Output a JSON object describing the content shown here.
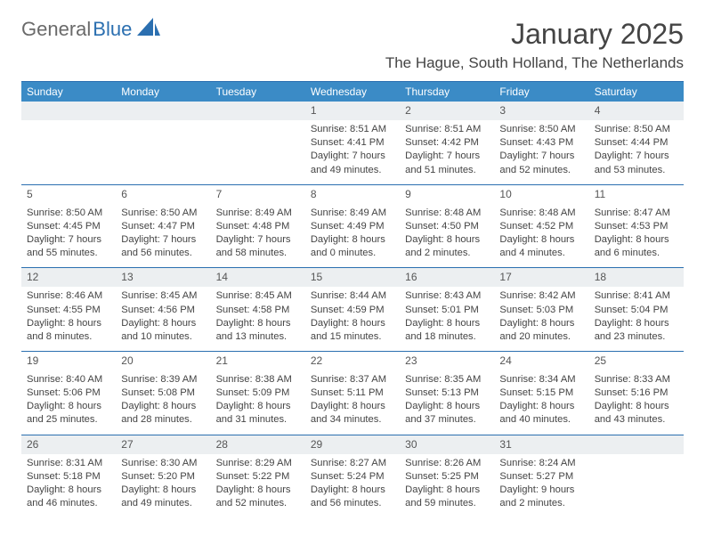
{
  "logo": {
    "text1": "General",
    "text2": "Blue"
  },
  "title": "January 2025",
  "subtitle": "The Hague, South Holland, The Netherlands",
  "colors": {
    "header_bg": "#3b8bc6",
    "header_text": "#ffffff",
    "rule": "#2b6fb0",
    "daybar_odd": "#eceff1",
    "text": "#444444"
  },
  "day_headers": [
    "Sunday",
    "Monday",
    "Tuesday",
    "Wednesday",
    "Thursday",
    "Friday",
    "Saturday"
  ],
  "weeks": [
    {
      "shade": "odd",
      "days": [
        {
          "n": "",
          "lines": []
        },
        {
          "n": "",
          "lines": []
        },
        {
          "n": "",
          "lines": []
        },
        {
          "n": "1",
          "lines": [
            "Sunrise: 8:51 AM",
            "Sunset: 4:41 PM",
            "Daylight: 7 hours and 49 minutes."
          ]
        },
        {
          "n": "2",
          "lines": [
            "Sunrise: 8:51 AM",
            "Sunset: 4:42 PM",
            "Daylight: 7 hours and 51 minutes."
          ]
        },
        {
          "n": "3",
          "lines": [
            "Sunrise: 8:50 AM",
            "Sunset: 4:43 PM",
            "Daylight: 7 hours and 52 minutes."
          ]
        },
        {
          "n": "4",
          "lines": [
            "Sunrise: 8:50 AM",
            "Sunset: 4:44 PM",
            "Daylight: 7 hours and 53 minutes."
          ]
        }
      ]
    },
    {
      "shade": "even",
      "days": [
        {
          "n": "5",
          "lines": [
            "Sunrise: 8:50 AM",
            "Sunset: 4:45 PM",
            "Daylight: 7 hours and 55 minutes."
          ]
        },
        {
          "n": "6",
          "lines": [
            "Sunrise: 8:50 AM",
            "Sunset: 4:47 PM",
            "Daylight: 7 hours and 56 minutes."
          ]
        },
        {
          "n": "7",
          "lines": [
            "Sunrise: 8:49 AM",
            "Sunset: 4:48 PM",
            "Daylight: 7 hours and 58 minutes."
          ]
        },
        {
          "n": "8",
          "lines": [
            "Sunrise: 8:49 AM",
            "Sunset: 4:49 PM",
            "Daylight: 8 hours and 0 minutes."
          ]
        },
        {
          "n": "9",
          "lines": [
            "Sunrise: 8:48 AM",
            "Sunset: 4:50 PM",
            "Daylight: 8 hours and 2 minutes."
          ]
        },
        {
          "n": "10",
          "lines": [
            "Sunrise: 8:48 AM",
            "Sunset: 4:52 PM",
            "Daylight: 8 hours and 4 minutes."
          ]
        },
        {
          "n": "11",
          "lines": [
            "Sunrise: 8:47 AM",
            "Sunset: 4:53 PM",
            "Daylight: 8 hours and 6 minutes."
          ]
        }
      ]
    },
    {
      "shade": "odd",
      "days": [
        {
          "n": "12",
          "lines": [
            "Sunrise: 8:46 AM",
            "Sunset: 4:55 PM",
            "Daylight: 8 hours and 8 minutes."
          ]
        },
        {
          "n": "13",
          "lines": [
            "Sunrise: 8:45 AM",
            "Sunset: 4:56 PM",
            "Daylight: 8 hours and 10 minutes."
          ]
        },
        {
          "n": "14",
          "lines": [
            "Sunrise: 8:45 AM",
            "Sunset: 4:58 PM",
            "Daylight: 8 hours and 13 minutes."
          ]
        },
        {
          "n": "15",
          "lines": [
            "Sunrise: 8:44 AM",
            "Sunset: 4:59 PM",
            "Daylight: 8 hours and 15 minutes."
          ]
        },
        {
          "n": "16",
          "lines": [
            "Sunrise: 8:43 AM",
            "Sunset: 5:01 PM",
            "Daylight: 8 hours and 18 minutes."
          ]
        },
        {
          "n": "17",
          "lines": [
            "Sunrise: 8:42 AM",
            "Sunset: 5:03 PM",
            "Daylight: 8 hours and 20 minutes."
          ]
        },
        {
          "n": "18",
          "lines": [
            "Sunrise: 8:41 AM",
            "Sunset: 5:04 PM",
            "Daylight: 8 hours and 23 minutes."
          ]
        }
      ]
    },
    {
      "shade": "even",
      "days": [
        {
          "n": "19",
          "lines": [
            "Sunrise: 8:40 AM",
            "Sunset: 5:06 PM",
            "Daylight: 8 hours and 25 minutes."
          ]
        },
        {
          "n": "20",
          "lines": [
            "Sunrise: 8:39 AM",
            "Sunset: 5:08 PM",
            "Daylight: 8 hours and 28 minutes."
          ]
        },
        {
          "n": "21",
          "lines": [
            "Sunrise: 8:38 AM",
            "Sunset: 5:09 PM",
            "Daylight: 8 hours and 31 minutes."
          ]
        },
        {
          "n": "22",
          "lines": [
            "Sunrise: 8:37 AM",
            "Sunset: 5:11 PM",
            "Daylight: 8 hours and 34 minutes."
          ]
        },
        {
          "n": "23",
          "lines": [
            "Sunrise: 8:35 AM",
            "Sunset: 5:13 PM",
            "Daylight: 8 hours and 37 minutes."
          ]
        },
        {
          "n": "24",
          "lines": [
            "Sunrise: 8:34 AM",
            "Sunset: 5:15 PM",
            "Daylight: 8 hours and 40 minutes."
          ]
        },
        {
          "n": "25",
          "lines": [
            "Sunrise: 8:33 AM",
            "Sunset: 5:16 PM",
            "Daylight: 8 hours and 43 minutes."
          ]
        }
      ]
    },
    {
      "shade": "odd",
      "days": [
        {
          "n": "26",
          "lines": [
            "Sunrise: 8:31 AM",
            "Sunset: 5:18 PM",
            "Daylight: 8 hours and 46 minutes."
          ]
        },
        {
          "n": "27",
          "lines": [
            "Sunrise: 8:30 AM",
            "Sunset: 5:20 PM",
            "Daylight: 8 hours and 49 minutes."
          ]
        },
        {
          "n": "28",
          "lines": [
            "Sunrise: 8:29 AM",
            "Sunset: 5:22 PM",
            "Daylight: 8 hours and 52 minutes."
          ]
        },
        {
          "n": "29",
          "lines": [
            "Sunrise: 8:27 AM",
            "Sunset: 5:24 PM",
            "Daylight: 8 hours and 56 minutes."
          ]
        },
        {
          "n": "30",
          "lines": [
            "Sunrise: 8:26 AM",
            "Sunset: 5:25 PM",
            "Daylight: 8 hours and 59 minutes."
          ]
        },
        {
          "n": "31",
          "lines": [
            "Sunrise: 8:24 AM",
            "Sunset: 5:27 PM",
            "Daylight: 9 hours and 2 minutes."
          ]
        },
        {
          "n": "",
          "lines": []
        }
      ]
    }
  ]
}
